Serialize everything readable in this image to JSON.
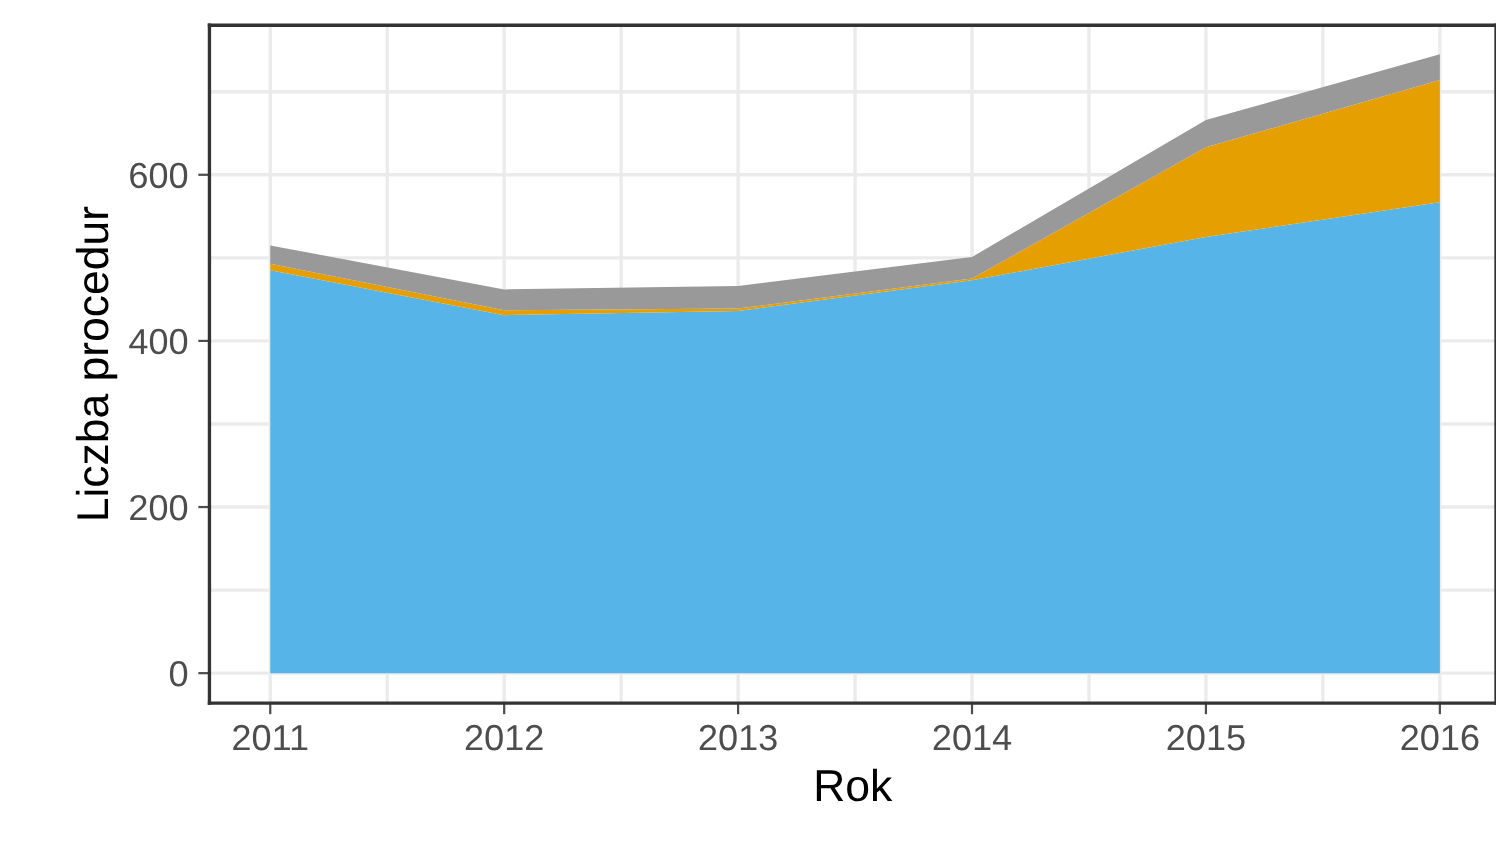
{
  "chart_data": {
    "type": "area",
    "stacked": true,
    "xlabel": "Rok",
    "ylabel": "Liczba procedur",
    "x": [
      2011,
      2012,
      2013,
      2014,
      2015,
      2016
    ],
    "series": [
      {
        "color": "#56b4e9",
        "values": [
          485,
          431,
          436,
          473,
          525,
          567
        ]
      },
      {
        "color": "#e69f00",
        "values": [
          8,
          6,
          3,
          2,
          108,
          147
        ]
      },
      {
        "color": "#999999",
        "values": [
          22,
          25,
          27,
          26,
          33,
          31
        ]
      }
    ],
    "xlim": [
      2010.74,
      2016.24
    ],
    "ylim": [
      -36,
      780
    ],
    "xticks": [
      2011,
      2012,
      2013,
      2014,
      2015,
      2016
    ],
    "yticks": [
      0,
      200,
      400,
      600
    ],
    "grid": true
  }
}
